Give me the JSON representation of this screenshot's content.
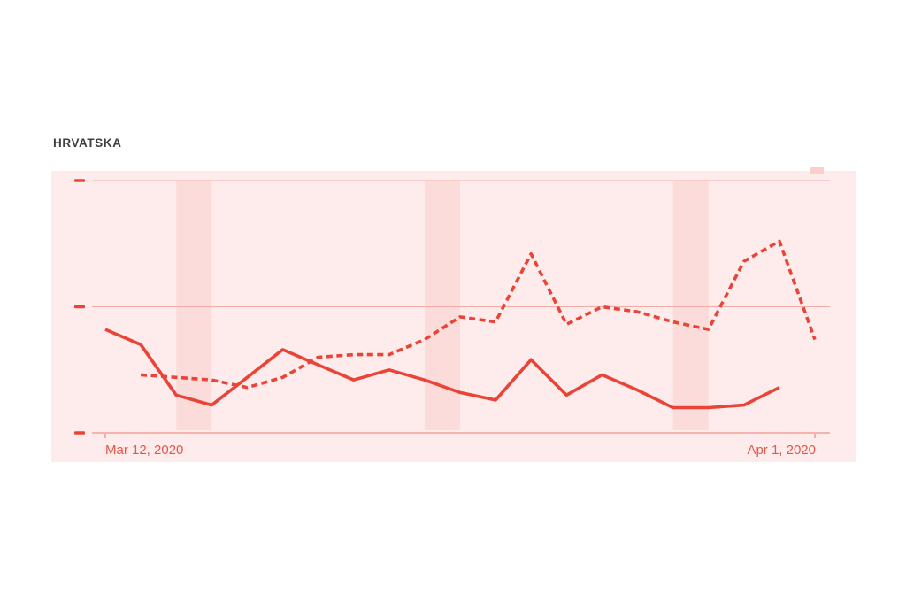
{
  "title": "HRVATSKA",
  "colors": {
    "accent_red": "#e94437",
    "panel_bg": "#fdeceb",
    "weekend_band": "#fcdcda",
    "gridline": "#f3aba4",
    "axis_tick_small": "#ef9d96",
    "axis_label": "#e8564b",
    "title_text": "#3c4043",
    "top_nub": "#f9cfca"
  },
  "x_axis": {
    "start_label": "Mar 12, 2020",
    "end_label": "Apr 1, 2020"
  },
  "chart_data": {
    "type": "line",
    "title": "HRVATSKA",
    "xlabel": "",
    "ylabel": "",
    "x_start_label": "Mar 12, 2020",
    "x_end_label": "Apr 1, 2020",
    "num_points": 21,
    "ylim": [
      0,
      100
    ],
    "gridline_values": [
      0,
      50,
      100
    ],
    "grid": "horizontal-only",
    "legend": "none",
    "weekend_bands_day_indices": [
      [
        2,
        3
      ],
      [
        9,
        10
      ],
      [
        16,
        17
      ]
    ],
    "series": [
      {
        "name": "solid",
        "style": "solid",
        "start_index": 0,
        "values": [
          41,
          35,
          15,
          11,
          22,
          33,
          27,
          21,
          25,
          21,
          16,
          13,
          29,
          15,
          23,
          17,
          10,
          10,
          11,
          18
        ]
      },
      {
        "name": "dashed",
        "style": "dashed",
        "start_index": 1,
        "values": [
          23,
          22,
          21,
          18,
          22,
          30,
          31,
          31,
          37,
          46,
          44,
          71,
          43,
          50,
          48,
          44,
          41,
          68,
          76,
          37
        ]
      }
    ]
  }
}
